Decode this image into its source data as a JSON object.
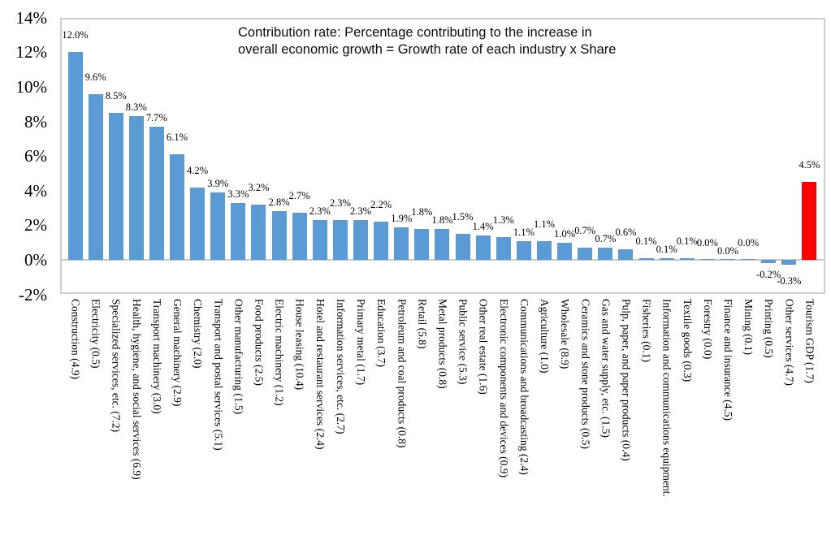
{
  "chart_data": {
    "type": "bar",
    "title": "Contribution rate: Percentage contributing to the increase in overall economic growth = Growth rate of each industry x Share",
    "title_lines": [
      "Contribution rate: Percentage contributing to the increase in",
      "overall economic growth = Growth rate of each industry x Share"
    ],
    "xlabel": "",
    "ylabel": "",
    "ylim": [
      -2,
      14
    ],
    "ytick_labels": [
      "14%",
      "12%",
      "10%",
      "8%",
      "6%",
      "4%",
      "2%",
      "0%",
      "-2%"
    ],
    "ytick_values": [
      14,
      12,
      10,
      8,
      6,
      4,
      2,
      0,
      -2
    ],
    "grid": false,
    "legend": false,
    "colors": {
      "default": "#5B9BD5",
      "highlight": "#FF0000"
    },
    "highlight_index": 36,
    "categories": [
      "Construction (4.9)",
      "Electricity (0.5)",
      "Specialized services, etc. (7.2)",
      "Health, hygiene, and social services (6.9)",
      "Transport machinery (3.0)",
      "General machinery (2.9)",
      "Chemistry (2.0)",
      "Transport and postal services (5.1)",
      "Other manufacturing (1.5)",
      "Food products (2.5)",
      "Electric machinery (1.2)",
      "House leasing (10.4)",
      "Hotel and restaurant services (2.4)",
      "Information services, etc. (2.7)",
      "Primary metal (1.7)",
      "Education (3.7)",
      "Petroleum and coal products (0.8)",
      "Retail (5.8)",
      "Metal products (0.8)",
      "Public service (5.3)",
      "Other real estate (1.6)",
      "Electronic components and devices (0.9)",
      "Communications and broadcasting (2.4)",
      "Agriculture (1.0)",
      "Wholesale (8.9)",
      "Ceramics and stone products (0.5)",
      "Gas and water supply, etc. (1.5)",
      "Pulp, paper, and paper products (0.4)",
      "Fisheries (0.1)",
      "Information and communications equipment.",
      "Textile goods (0.3)",
      "Forestry (0.0)",
      "Finance and insurance (4.5)",
      "Mining (0.1)",
      "Printing (0.5)",
      "Other services (4.7)",
      "Tourism GDP (1.7)"
    ],
    "values": [
      12.0,
      9.6,
      8.5,
      8.3,
      7.7,
      6.1,
      4.2,
      3.9,
      3.3,
      3.2,
      2.8,
      2.7,
      2.3,
      2.3,
      2.3,
      2.2,
      1.9,
      1.8,
      1.8,
      1.5,
      1.4,
      1.3,
      1.1,
      1.1,
      1.0,
      0.7,
      0.7,
      0.6,
      0.1,
      0.1,
      0.1,
      0.0,
      0.0,
      0.0,
      -0.2,
      -0.3,
      4.5
    ],
    "data_labels": [
      "12.0%",
      "9.6%",
      "8.5%",
      "8.3%",
      "7.7%",
      "6.1%",
      "4.2%",
      "3.9%",
      "3.3%",
      "3.2%",
      "2.8%",
      "2.7%",
      "2.3%",
      "2.3%",
      "2.3%",
      "2.2%",
      "1.9%",
      "1.8%",
      "1.8%",
      "1.5%",
      "1.4%",
      "1.3%",
      "1.1%",
      "1.1%",
      "1.0%",
      "0.7%",
      "0.7%",
      "0.6%",
      "0.1%",
      "0.1%",
      "0.1%",
      "0.0%",
      "0.0%",
      "0.0%",
      "-0.2%",
      "-0.3%",
      "4.5%"
    ]
  }
}
